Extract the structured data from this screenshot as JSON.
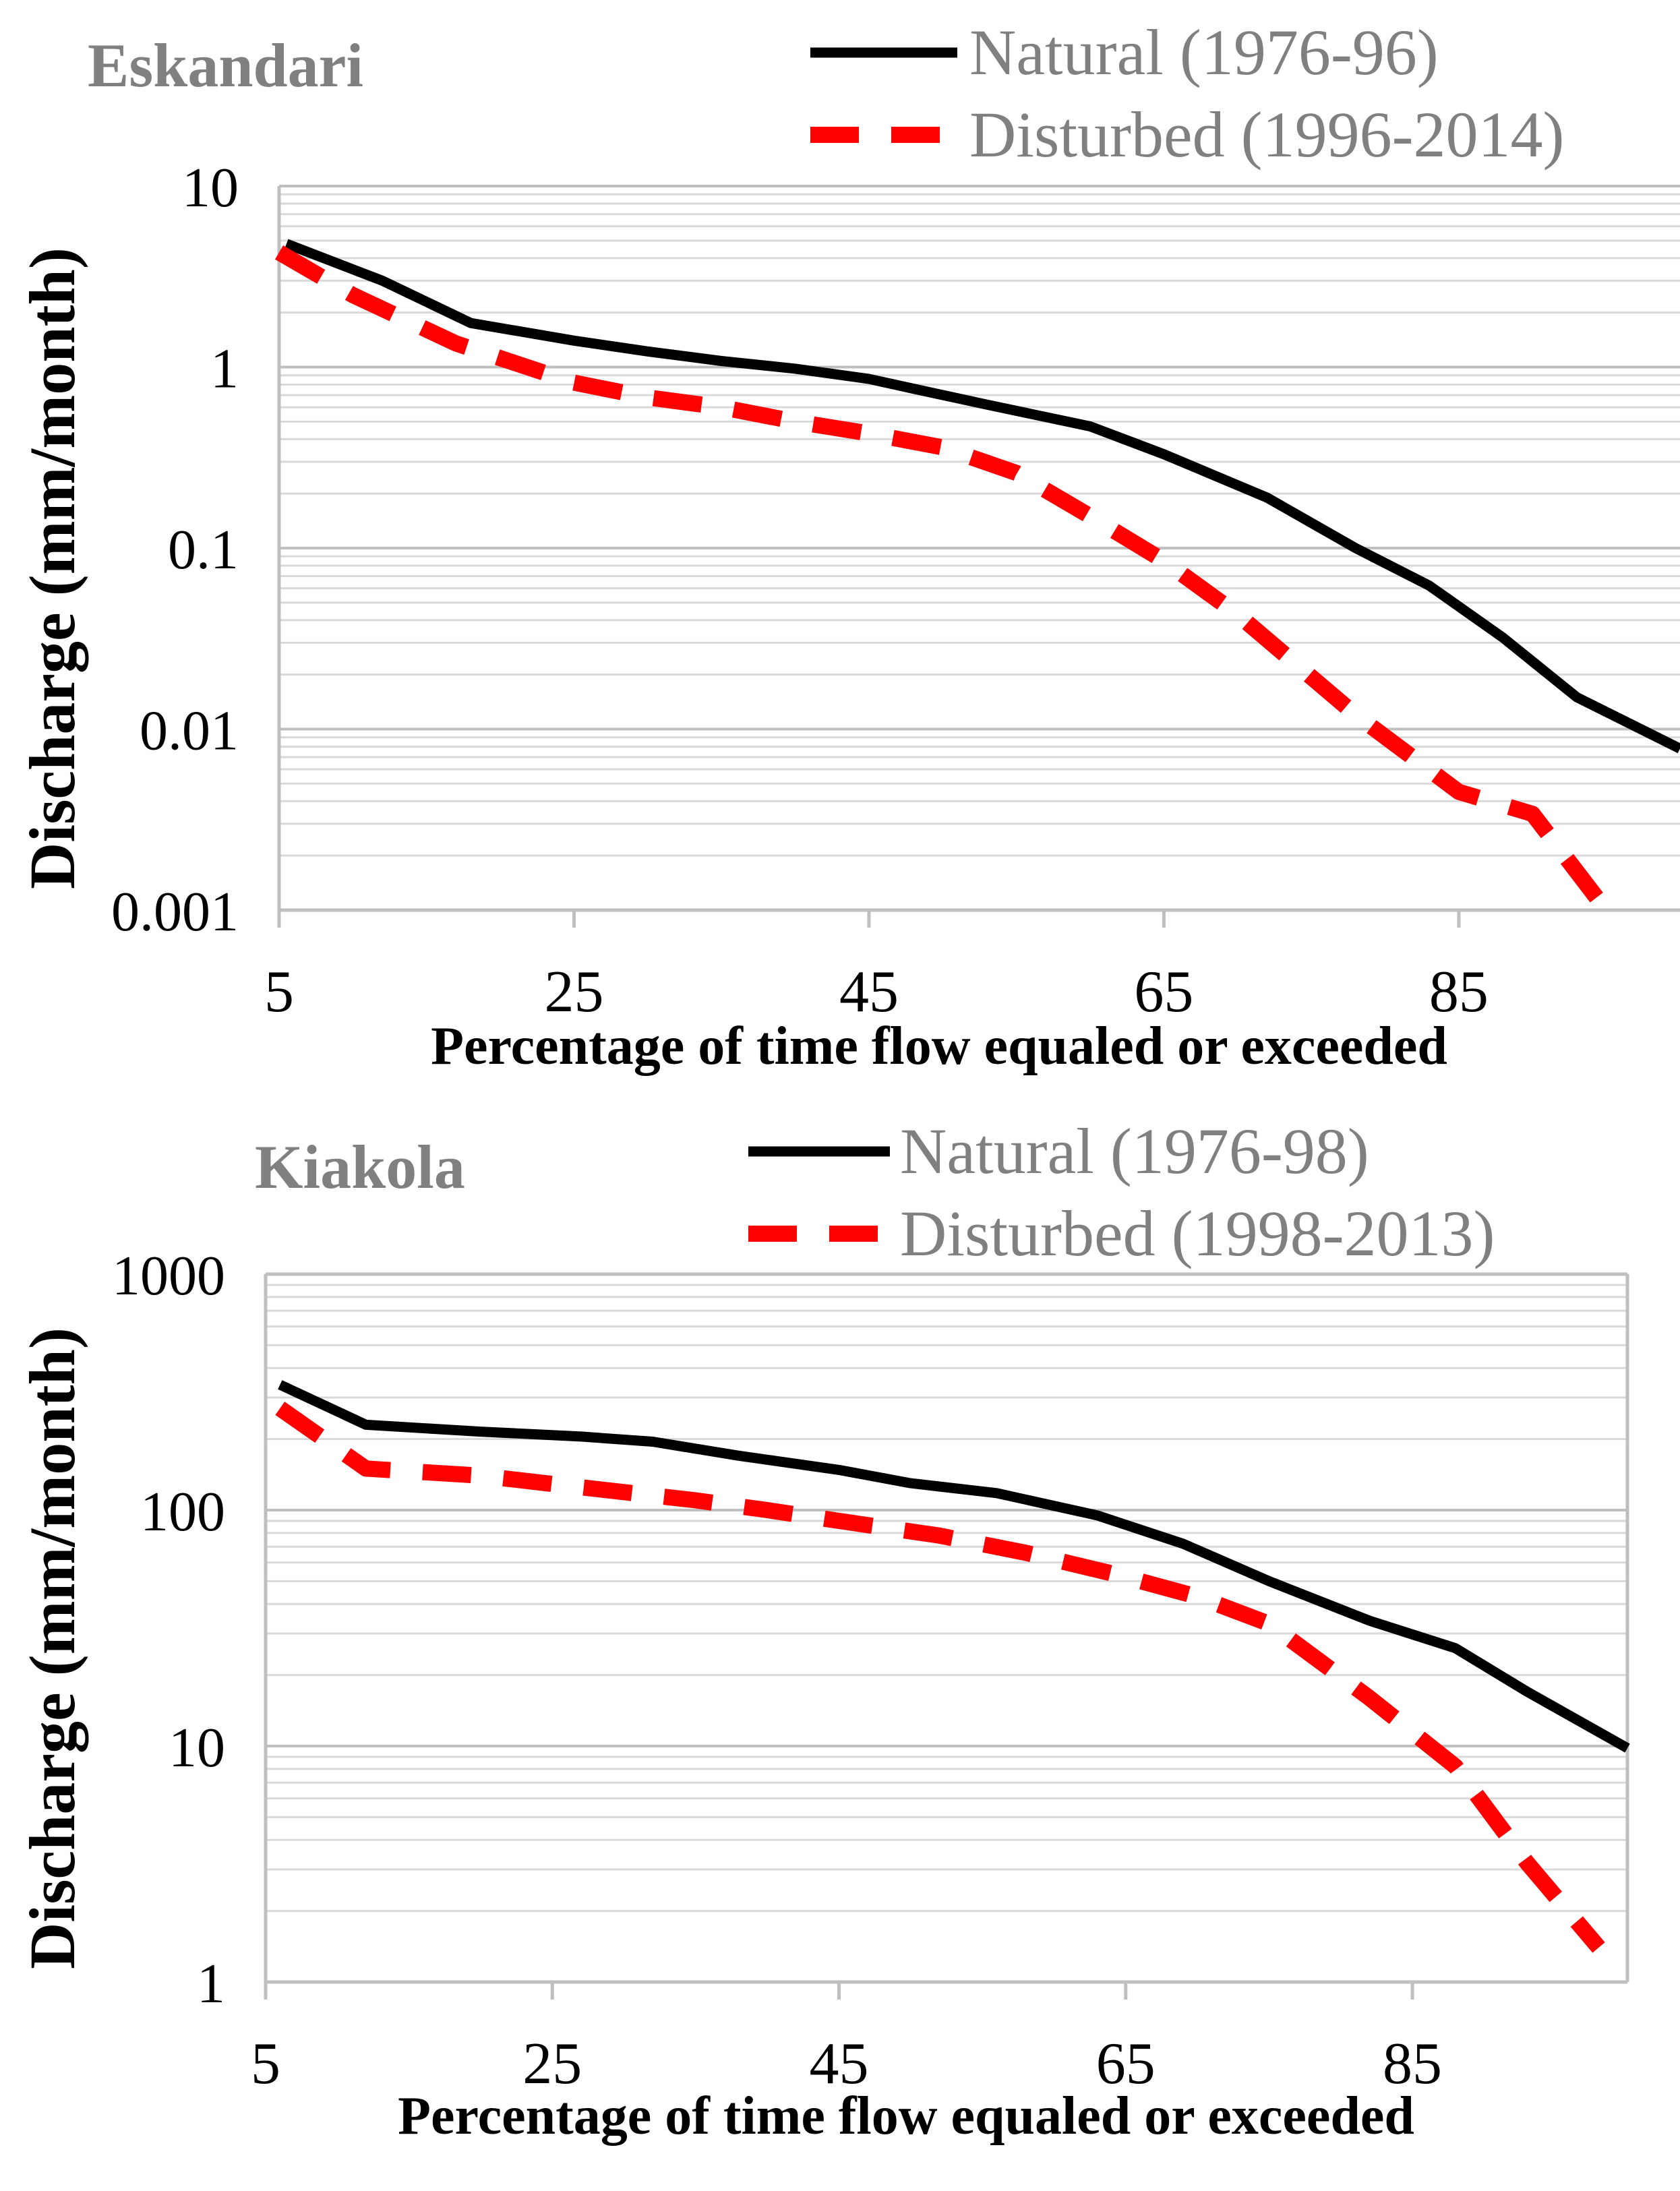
{
  "colors": {
    "natural": "#000000",
    "disturbed": "#ff0000",
    "title": "#808080",
    "legend_text": "#808080",
    "axis": "#bfbfbf",
    "gridline": "#d9d9d9",
    "text": "#000000"
  },
  "chart_data": [
    {
      "type": "line",
      "title": "Eskandari",
      "xlabel": "Percentage of time flow equaled or exceeded",
      "ylabel": "Discharge (mm/month)",
      "yscale": "log",
      "xlim": [
        5,
        100
      ],
      "ylim": [
        0.001,
        10
      ],
      "x_ticks": [
        5,
        25,
        45,
        65,
        85
      ],
      "x_tick_labels": [
        "5",
        "25",
        "45",
        "65",
        "85"
      ],
      "y_ticks": [
        0.001,
        0.01,
        0.1,
        1,
        10
      ],
      "y_tick_labels": [
        "0.001",
        "0.01",
        "0.1",
        "1",
        "10"
      ],
      "grid": true,
      "legend_position": "top-right",
      "series": [
        {
          "name": "Natural (1976-96)",
          "style": "solid",
          "x": [
            5.5,
            12,
            18,
            25,
            30,
            35,
            40,
            45,
            48,
            53,
            60,
            65,
            72,
            78,
            83,
            88,
            93,
            100
          ],
          "y": [
            4.8,
            3.0,
            1.75,
            1.4,
            1.22,
            1.08,
            0.98,
            0.86,
            0.76,
            0.62,
            0.47,
            0.33,
            0.19,
            0.1,
            0.062,
            0.032,
            0.015,
            0.0078
          ]
        },
        {
          "name": "Disturbed (1996-2014)",
          "style": "dashed",
          "x": [
            5,
            10,
            17,
            25,
            30,
            35,
            40,
            45,
            50,
            55,
            60,
            65,
            70,
            78,
            85,
            90,
            95
          ],
          "y": [
            4.3,
            2.5,
            1.35,
            0.82,
            0.68,
            0.6,
            0.5,
            0.43,
            0.36,
            0.26,
            0.15,
            0.085,
            0.043,
            0.012,
            0.0045,
            0.0034,
            0.001
          ]
        }
      ]
    },
    {
      "type": "line",
      "title": "Kiakola",
      "xlabel": "Percentage of time flow equaled or exceeded",
      "ylabel": "Discharge (mm/month)",
      "yscale": "log",
      "xlim": [
        5,
        100
      ],
      "ylim": [
        1,
        1000
      ],
      "x_ticks": [
        5,
        25,
        45,
        65,
        85
      ],
      "x_tick_labels": [
        "5",
        "25",
        "45",
        "65",
        "85"
      ],
      "y_ticks": [
        1,
        10,
        100,
        1000
      ],
      "y_tick_labels": [
        "1",
        "10",
        "100",
        "1000"
      ],
      "grid": true,
      "legend_position": "top-right",
      "series": [
        {
          "name": "Natural (1976-98)",
          "style": "solid",
          "x": [
            6,
            12,
            20,
            27,
            32,
            38,
            45,
            50,
            56,
            63,
            69,
            75,
            82,
            88,
            93,
            100
          ],
          "y": [
            340,
            230,
            215,
            205,
            195,
            170,
            148,
            130,
            118,
            95,
            72,
            50,
            34,
            26,
            17,
            9.8
          ]
        },
        {
          "name": "Disturbed (1998-2013)",
          "style": "dashed",
          "x": [
            6,
            12,
            20,
            27,
            35,
            40,
            45,
            52,
            58,
            64,
            70,
            75,
            82,
            88,
            93,
            98
          ],
          "y": [
            270,
            150,
            140,
            125,
            110,
            100,
            90,
            78,
            66,
            54,
            43,
            33,
            16,
            8.2,
            3.2,
            1.4
          ]
        }
      ]
    }
  ]
}
